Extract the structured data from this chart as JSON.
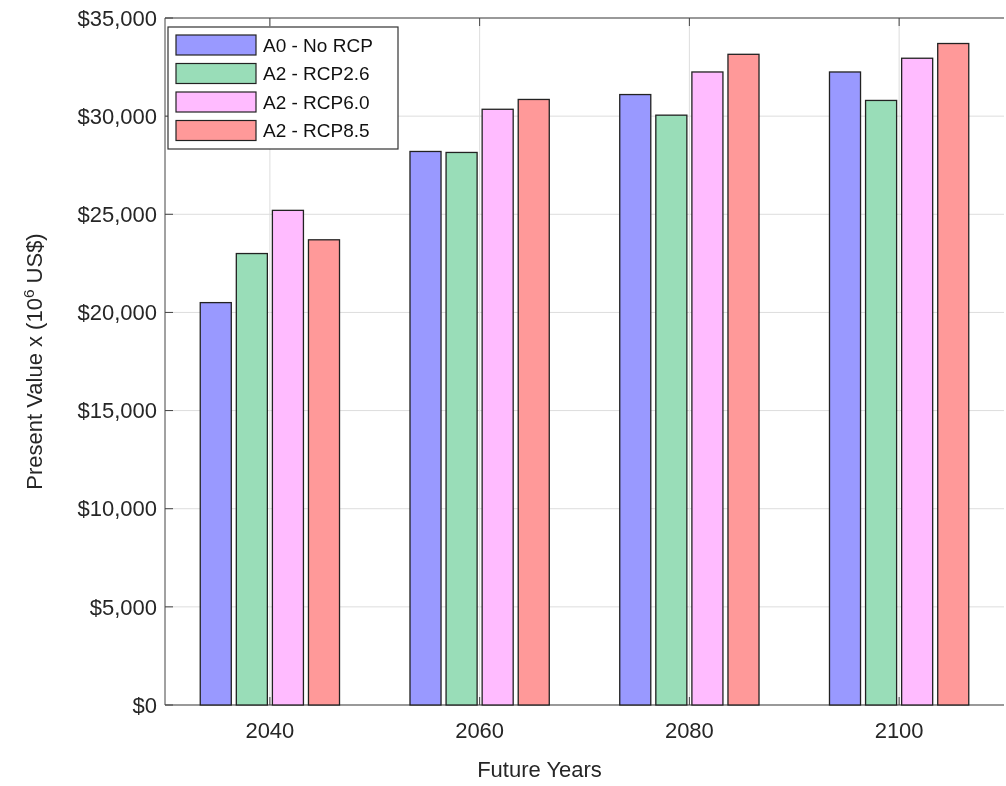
{
  "chart_data": {
    "type": "bar",
    "xlabel": "Future Years",
    "ylabel": "Present Value x (10$^{6}$ US$)",
    "categories": [
      "2040",
      "2060",
      "2080",
      "2100"
    ],
    "series": [
      {
        "name": "A0 - No RCP",
        "color": "#9999ff",
        "values": [
          20500,
          28200,
          31100,
          32250
        ]
      },
      {
        "name": "A2 - RCP2.6",
        "color": "#99ddb8",
        "values": [
          23000,
          28150,
          30050,
          30800
        ]
      },
      {
        "name": "A2 - RCP6.0",
        "color": "#ffbbff",
        "values": [
          25200,
          30350,
          32250,
          32950
        ]
      },
      {
        "name": "A2 - RCP8.5",
        "color": "#ff9999",
        "values": [
          23700,
          30850,
          33150,
          33700
        ]
      }
    ],
    "ylim": [
      0,
      35000
    ],
    "yticks": [
      {
        "value": 0,
        "label": "$0"
      },
      {
        "value": 5000,
        "label": "$5,000"
      },
      {
        "value": 10000,
        "label": "$10,000"
      },
      {
        "value": 15000,
        "label": "$15,000"
      },
      {
        "value": 20000,
        "label": "$20,000"
      },
      {
        "value": 25000,
        "label": "$25,000"
      },
      {
        "value": 30000,
        "label": "$30,000"
      },
      {
        "value": 35000,
        "label": "$35,000"
      }
    ],
    "grid": true,
    "legend": "top left"
  }
}
